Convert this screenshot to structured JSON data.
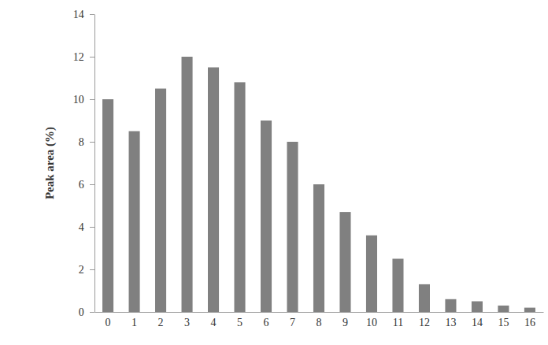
{
  "chart_data": {
    "type": "bar",
    "y_label": "Peak area (%)",
    "categories": [
      "0",
      "1",
      "2",
      "3",
      "4",
      "5",
      "6",
      "7",
      "8",
      "9",
      "10",
      "11",
      "12",
      "13",
      "14",
      "15",
      "16"
    ],
    "values": [
      10,
      8.5,
      10.5,
      12,
      11.5,
      10.8,
      9,
      8,
      6,
      4.7,
      3.6,
      2.5,
      1.3,
      0.6,
      0.5,
      0.3,
      0.2
    ],
    "color": "#808080",
    "ylim": [
      0,
      14
    ],
    "yticks": [
      0,
      2,
      4,
      6,
      8,
      10,
      12,
      14
    ],
    "grid": false
  }
}
